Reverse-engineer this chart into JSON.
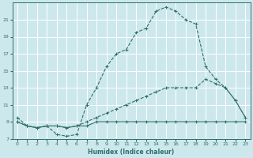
{
  "xlabel": "Humidex (Indice chaleur)",
  "bg_color": "#cde8ec",
  "grid_color": "#ffffff",
  "line_color": "#2d6e6a",
  "xlim": [
    -0.5,
    23.5
  ],
  "ylim": [
    7,
    23
  ],
  "xticks": [
    0,
    1,
    2,
    3,
    4,
    5,
    6,
    7,
    8,
    9,
    10,
    11,
    12,
    13,
    14,
    15,
    16,
    17,
    18,
    19,
    20,
    21,
    22,
    23
  ],
  "yticks": [
    7,
    9,
    11,
    13,
    15,
    17,
    19,
    21
  ],
  "line1_x": [
    0,
    1,
    2,
    3,
    4,
    5,
    6,
    7,
    8,
    9,
    10,
    11,
    12,
    13,
    14,
    15,
    16,
    17,
    18,
    19,
    20,
    21,
    22,
    23
  ],
  "line1_y": [
    9.5,
    8.5,
    8.3,
    8.5,
    7.5,
    7.3,
    7.5,
    11.0,
    13.0,
    15.5,
    17.0,
    17.5,
    19.5,
    20.0,
    22.0,
    22.5,
    22.0,
    21.0,
    20.5,
    15.5,
    14.0,
    13.0,
    11.5,
    9.5
  ],
  "line2_x": [
    0,
    1,
    2,
    3,
    4,
    5,
    6,
    7,
    8,
    9,
    10,
    11,
    12,
    13,
    14,
    15,
    16,
    17,
    18,
    19,
    20,
    21,
    22,
    23
  ],
  "line2_y": [
    9.0,
    8.5,
    8.3,
    8.5,
    8.5,
    8.3,
    8.5,
    9.0,
    9.5,
    10.0,
    10.5,
    11.0,
    11.5,
    12.0,
    12.5,
    13.0,
    13.0,
    13.0,
    13.0,
    14.0,
    13.5,
    13.0,
    11.5,
    9.5
  ],
  "line3_x": [
    0,
    1,
    2,
    3,
    4,
    5,
    6,
    7,
    8,
    9,
    10,
    11,
    12,
    13,
    14,
    15,
    16,
    17,
    18,
    19,
    20,
    21,
    22,
    23
  ],
  "line3_y": [
    9.0,
    8.5,
    8.3,
    8.5,
    8.5,
    8.3,
    8.5,
    8.5,
    9.0,
    9.0,
    9.0,
    9.0,
    9.0,
    9.0,
    9.0,
    9.0,
    9.0,
    9.0,
    9.0,
    9.0,
    9.0,
    9.0,
    9.0,
    9.0
  ]
}
